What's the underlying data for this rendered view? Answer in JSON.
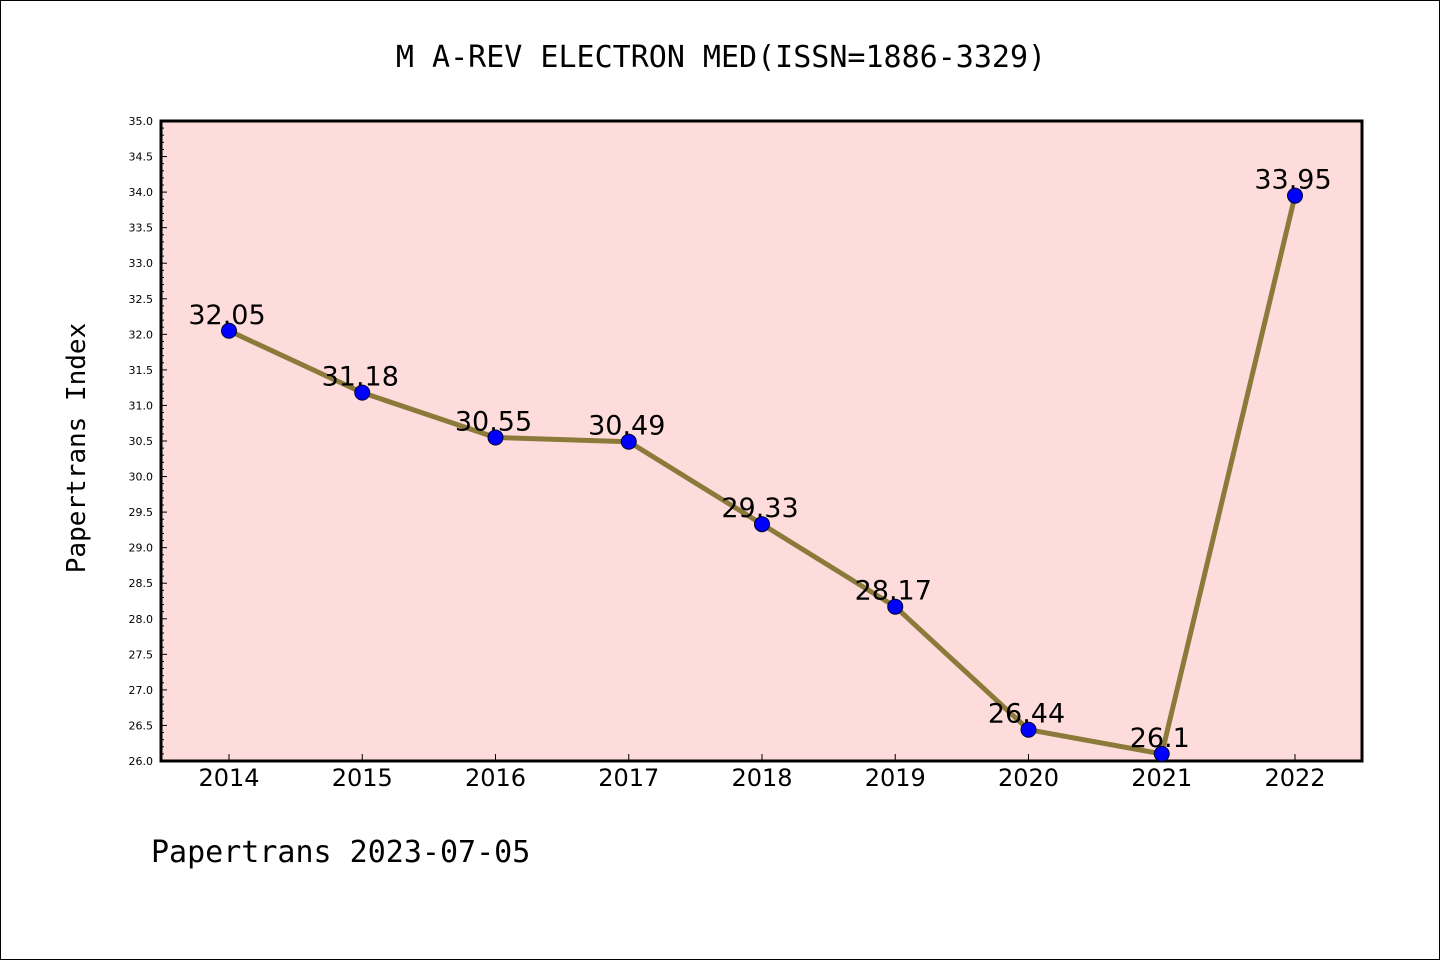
{
  "chart_data": {
    "type": "line",
    "title": "M A-REV ELECTRON MED(ISSN=1886-3329)",
    "xlabel": "",
    "ylabel": "Papertrans Index",
    "categories": [
      "2014",
      "2015",
      "2016",
      "2017",
      "2018",
      "2019",
      "2020",
      "2021",
      "2022"
    ],
    "series": [
      {
        "values": [
          32.05,
          31.18,
          30.55,
          30.49,
          29.33,
          28.17,
          26.44,
          26.1,
          33.95
        ],
        "labels": [
          "32.05",
          "31.18",
          "30.55",
          "30.49",
          "29.33",
          "28.17",
          "26.44",
          "26.1",
          "33.95"
        ]
      }
    ],
    "ylim": [
      26.0,
      35.0
    ],
    "yticks": [
      "26.0",
      "26.5",
      "27.0",
      "27.5",
      "28.0",
      "28.5",
      "29.0",
      "29.5",
      "30.0",
      "30.5",
      "31.0",
      "31.5",
      "32.0",
      "32.5",
      "33.0",
      "33.5",
      "34.0",
      "34.5",
      "35.0"
    ],
    "grid": false,
    "colors": {
      "plot_background": "#ffdcdc",
      "line": "#8b7a3a",
      "marker": "#0000ff"
    }
  },
  "footer": "Papertrans 2023-07-05"
}
